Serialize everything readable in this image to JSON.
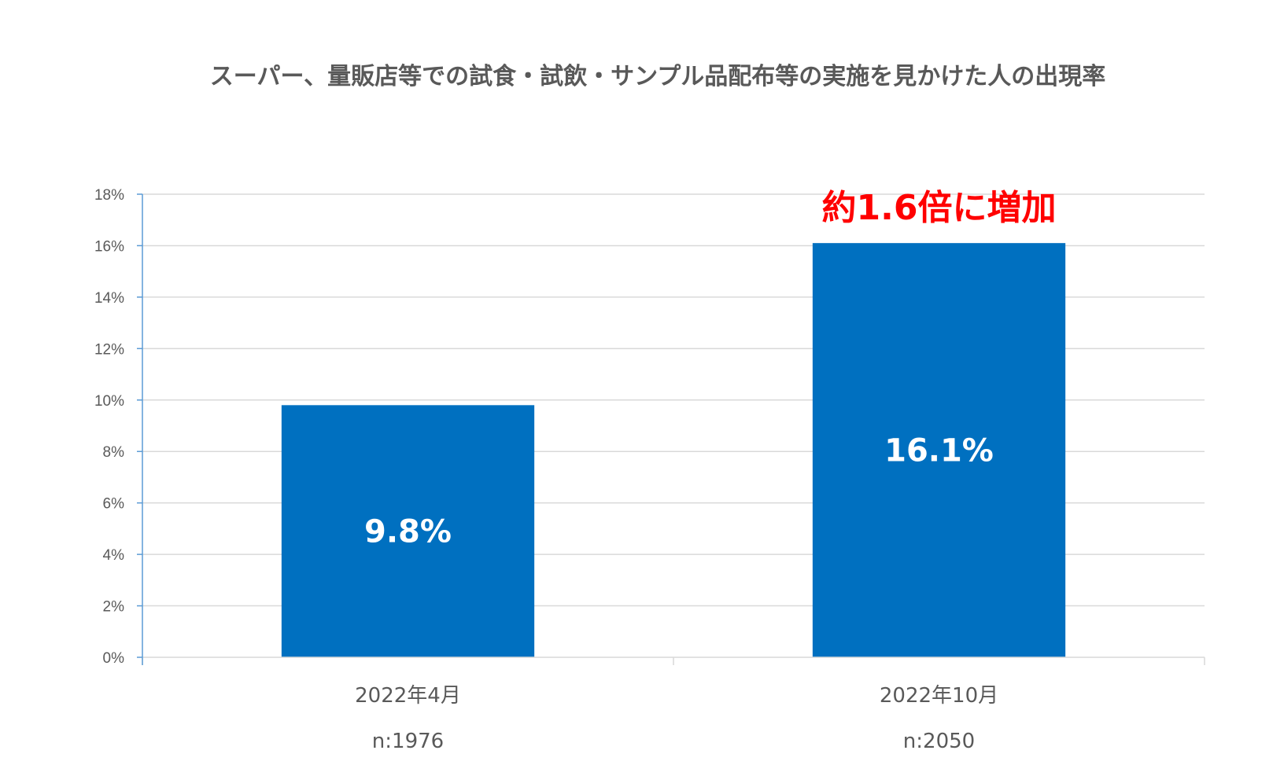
{
  "chart_data": {
    "type": "bar",
    "title": "スーパー、量販店等での試食・試飲・サンプル品配布等の実施を見かけた人の出現率",
    "categories": [
      "2022年4月",
      "2022年10月"
    ],
    "sample_sizes": [
      "n:1976",
      "n:2050"
    ],
    "values": [
      9.8,
      16.1
    ],
    "data_labels": [
      "9.8%",
      "16.1%"
    ],
    "unit": "%",
    "ylim": [
      0,
      18
    ],
    "yticks": [
      0,
      2,
      4,
      6,
      8,
      10,
      12,
      14,
      16,
      18
    ],
    "ytick_labels": [
      "0%",
      "2%",
      "4%",
      "6%",
      "8%",
      "10%",
      "12%",
      "14%",
      "16%",
      "18%"
    ],
    "annotation": "約1.6倍に増加",
    "grid": true,
    "bar_color": "#0070c0",
    "annotation_color": "#ff0000"
  }
}
